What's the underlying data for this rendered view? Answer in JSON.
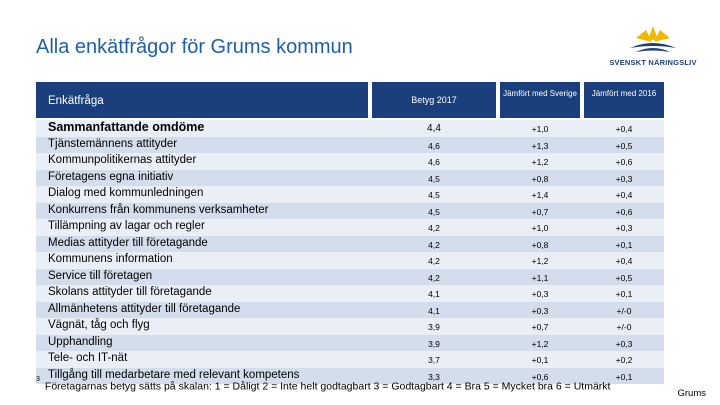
{
  "title": "Alla enkätfrågor för Grums kommun",
  "logo": {
    "text": "SVENSKT NÄRINGSLIV"
  },
  "table": {
    "headers": {
      "question": "Enkätfråga",
      "score": "Betyg 2017",
      "vs_sweden": "Jämfört med Sverige",
      "vs_2016": "Jämfört med 2016"
    },
    "rows": [
      {
        "question": "Sammanfattande omdöme",
        "score": "4,4",
        "vs_sweden": "+1,0",
        "vs_2016": "+0,4"
      },
      {
        "question": "Tjänstemännens attityder",
        "score": "4,6",
        "vs_sweden": "+1,3",
        "vs_2016": "+0,5"
      },
      {
        "question": "Kommunpolitikernas attityder",
        "score": "4,6",
        "vs_sweden": "+1,2",
        "vs_2016": "+0,6"
      },
      {
        "question": "Företagens egna initiativ",
        "score": "4,5",
        "vs_sweden": "+0,8",
        "vs_2016": "+0,3"
      },
      {
        "question": "Dialog med kommunledningen",
        "score": "4,5",
        "vs_sweden": "+1,4",
        "vs_2016": "+0,4"
      },
      {
        "question": "Konkurrens från kommunens verksamheter",
        "score": "4,5",
        "vs_sweden": "+0,7",
        "vs_2016": "+0,6"
      },
      {
        "question": "Tillämpning av lagar och regler",
        "score": "4,2",
        "vs_sweden": "+1,0",
        "vs_2016": "+0,3"
      },
      {
        "question": "Medias attityder till företagande",
        "score": "4,2",
        "vs_sweden": "+0,8",
        "vs_2016": "+0,1"
      },
      {
        "question": "Kommunens information",
        "score": "4,2",
        "vs_sweden": "+1,2",
        "vs_2016": "+0,4"
      },
      {
        "question": "Service till företagen",
        "score": "4,2",
        "vs_sweden": "+1,1",
        "vs_2016": "+0,5"
      },
      {
        "question": "Skolans attityder till företagande",
        "score": "4,1",
        "vs_sweden": "+0,3",
        "vs_2016": "+0,1"
      },
      {
        "question": "Allmänhetens attityder till företagande",
        "score": "4,1",
        "vs_sweden": "+0,3",
        "vs_2016": "+/-0"
      },
      {
        "question": "Vägnät, tåg och flyg",
        "score": "3,9",
        "vs_sweden": "+0,7",
        "vs_2016": "+/-0"
      },
      {
        "question": "Upphandling",
        "score": "3,9",
        "vs_sweden": "+1,2",
        "vs_2016": "+0,3"
      },
      {
        "question": "Tele- och IT-nät",
        "score": "3,7",
        "vs_sweden": "+0,1",
        "vs_2016": "+0,2"
      },
      {
        "question": "Tillgång till medarbetare med relevant kompetens",
        "score": "3,3",
        "vs_sweden": "+0,6",
        "vs_2016": "+0,1"
      }
    ]
  },
  "footnote": {
    "marker": "3",
    "text": "Företagarnas betyg sätts på skalan: 1 = Dåligt 2 = Inte helt godtagbart 3 = Godtagbart 4 = Bra 5 = Mycket bra 6 = Utmärkt"
  },
  "corner_label": "Grums",
  "colors": {
    "title": "#1f5fa6",
    "header_bg": "#1b3f7d",
    "row_light": "#eaeff7",
    "row_dark": "#d4ddec",
    "logo_yellow": "#f0b800",
    "logo_blue": "#1f3f7a"
  }
}
